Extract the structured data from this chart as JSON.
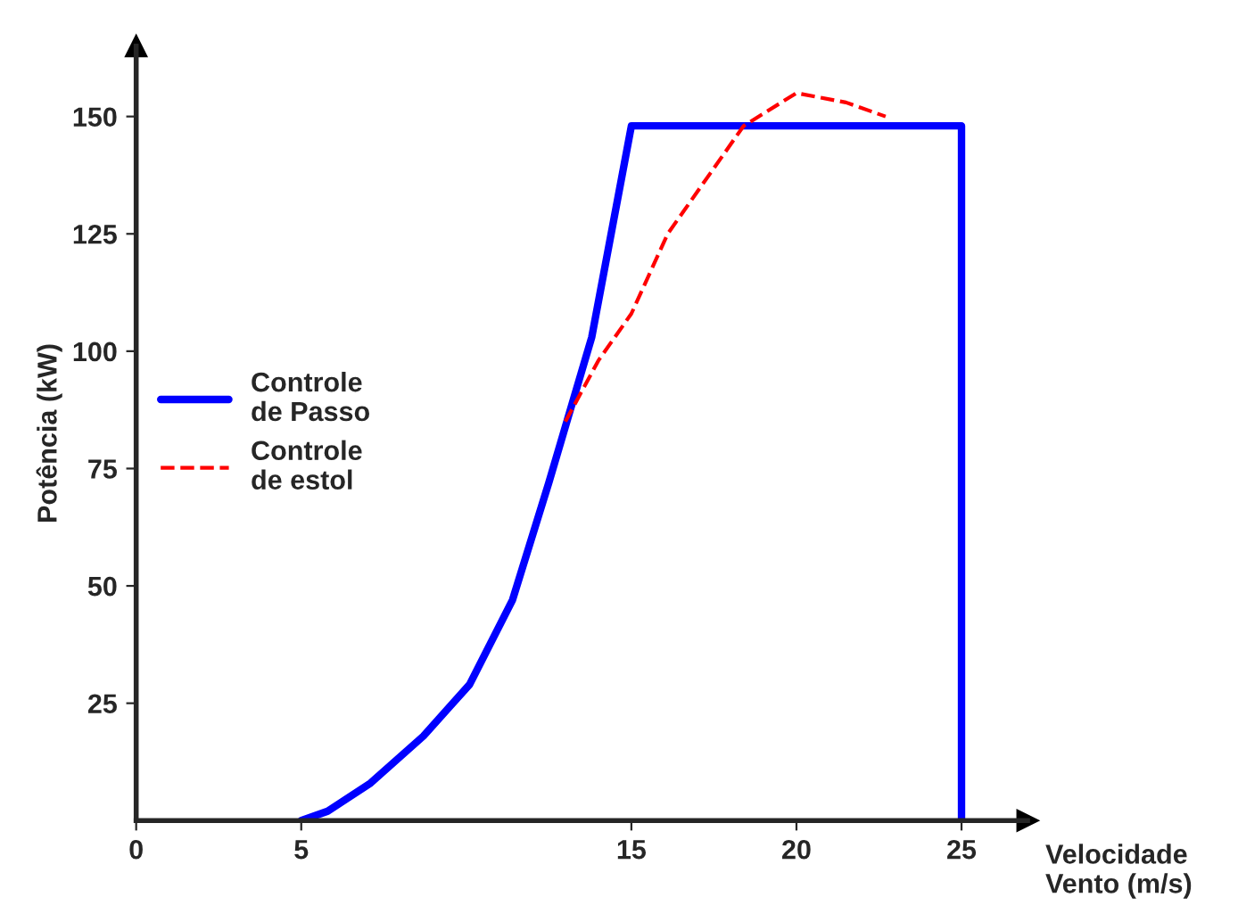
{
  "chart_data": {
    "type": "line",
    "xlabel": "Velocidade\nVento (m/s)",
    "ylabel": "Potência (kW)",
    "xlim": [
      0,
      27
    ],
    "ylim": [
      0,
      165
    ],
    "xticks": [
      0,
      5,
      15,
      20,
      25
    ],
    "yticks": [
      25,
      50,
      75,
      100,
      125,
      150
    ],
    "grid": false,
    "legend": "left",
    "marker": "none",
    "series": [
      {
        "name": "Controle\nde Passo",
        "color": "#0000ff",
        "line_style": "solid",
        "x": [
          5,
          5.8,
          7.1,
          8.7,
          10.1,
          11.4,
          12.5,
          13.8,
          15,
          25,
          25
        ],
        "values": [
          0,
          2,
          8,
          18,
          29,
          47,
          72,
          103,
          148,
          148,
          0
        ]
      },
      {
        "name": "Controle\nde estol",
        "color": "#ff0000",
        "line_style": "dashed",
        "x": [
          13,
          14,
          15,
          16.1,
          17.4,
          18.4,
          20,
          21.5,
          22.7
        ],
        "values": [
          85,
          98,
          108,
          125,
          138,
          148,
          155,
          153,
          150
        ]
      }
    ]
  }
}
